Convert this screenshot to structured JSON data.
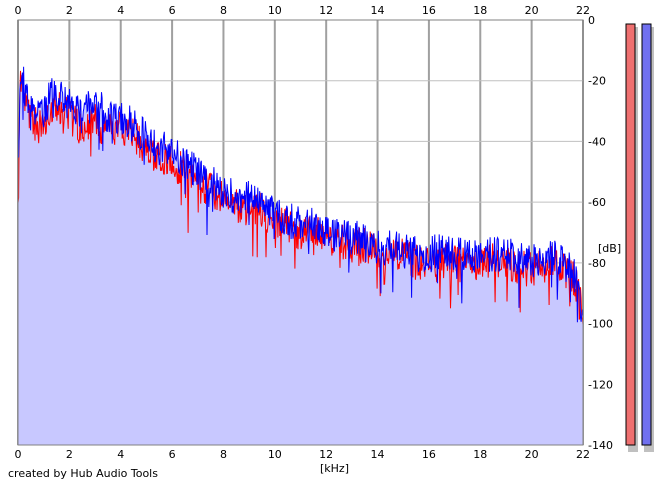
{
  "credit": "created by Hub Audio Tools",
  "chart_data": {
    "type": "area",
    "xlabel": "[kHz]",
    "ylabel": "[dB]",
    "xlim": [
      0,
      22
    ],
    "ylim": [
      -140,
      0
    ],
    "x_ticks": [
      "0",
      "2",
      "4",
      "6",
      "8",
      "10",
      "12",
      "14",
      "16",
      "18",
      "20",
      "22"
    ],
    "y_ticks": [
      "0",
      "-20",
      "-40",
      "-60",
      "-80",
      "-100",
      "-120",
      "-140"
    ],
    "grid": true,
    "series": [
      {
        "color": "#ff0000",
        "x": [
          0,
          0.1,
          0.5,
          1.0,
          1.3,
          1.5,
          2.0,
          2.5,
          3.0,
          3.5,
          4.0,
          4.5,
          5.0,
          5.5,
          6.0,
          6.5,
          7.0,
          7.5,
          8.0,
          8.5,
          9.0,
          9.5,
          10.0,
          10.5,
          11.0,
          11.5,
          12.0,
          12.5,
          13.0,
          13.5,
          14.0,
          14.5,
          15.0,
          15.5,
          16.0,
          16.5,
          17.0,
          17.5,
          18.0,
          18.5,
          19.0,
          19.5,
          20.0,
          20.5,
          21.0,
          21.5,
          21.8,
          22.0
        ],
        "values": [
          -55,
          -20,
          -33,
          -36,
          -30,
          -28,
          -32,
          -35,
          -33,
          -37,
          -36,
          -38,
          -42,
          -45,
          -47,
          -50,
          -53,
          -56,
          -59,
          -61,
          -62,
          -63,
          -67,
          -68,
          -70,
          -69,
          -72,
          -73,
          -75,
          -74,
          -77,
          -78,
          -78,
          -80,
          -80,
          -79,
          -80,
          -81,
          -80,
          -79,
          -80,
          -81,
          -82,
          -81,
          -80,
          -84,
          -88,
          -99
        ]
      },
      {
        "color": "#0000ff",
        "x": [
          0,
          0.1,
          0.5,
          1.0,
          1.3,
          1.5,
          2.0,
          2.5,
          3.0,
          3.5,
          4.0,
          4.5,
          5.0,
          5.5,
          6.0,
          6.5,
          7.0,
          7.5,
          8.0,
          8.5,
          9.0,
          9.5,
          10.0,
          10.5,
          11.0,
          11.5,
          12.0,
          12.5,
          13.0,
          13.5,
          14.0,
          14.5,
          15.0,
          15.5,
          16.0,
          16.5,
          17.0,
          17.5,
          18.0,
          18.5,
          19.0,
          19.5,
          20.0,
          20.5,
          21.0,
          21.5,
          21.8,
          22.0
        ],
        "values": [
          -50,
          -17,
          -30,
          -32,
          -22,
          -25,
          -28,
          -32,
          -26,
          -33,
          -32,
          -35,
          -39,
          -42,
          -44,
          -47,
          -51,
          -53,
          -56,
          -59,
          -59,
          -61,
          -64,
          -66,
          -67,
          -66,
          -69,
          -71,
          -72,
          -72,
          -75,
          -75,
          -76,
          -77,
          -77,
          -76,
          -77,
          -78,
          -77,
          -77,
          -78,
          -78,
          -79,
          -79,
          -78,
          -82,
          -86,
          -98
        ]
      }
    ],
    "level_meters": [
      {
        "color": "#ef7070"
      },
      {
        "color": "#7070ef"
      }
    ]
  }
}
